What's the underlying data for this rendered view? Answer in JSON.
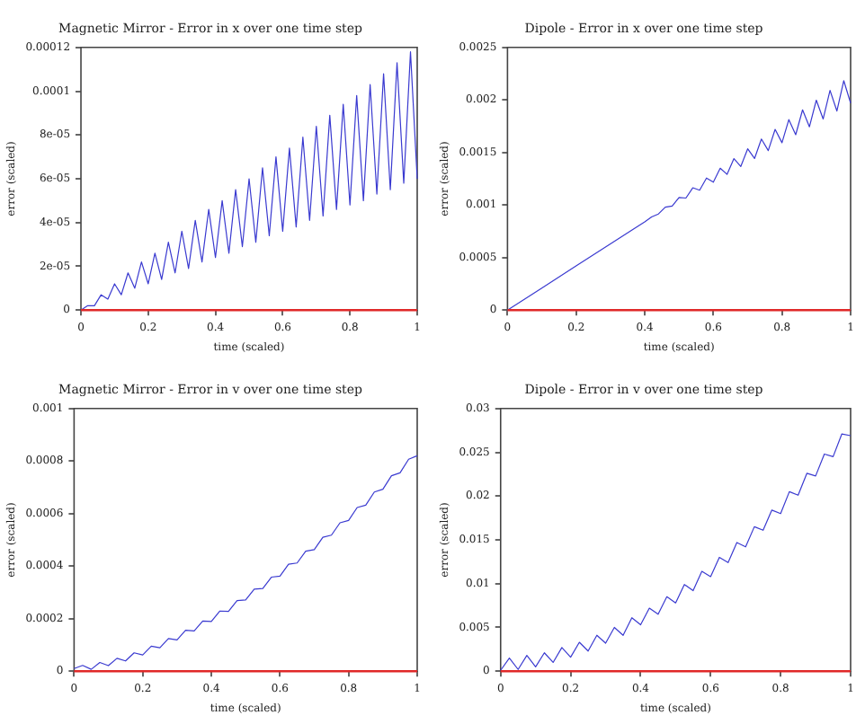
{
  "chart_data": [
    {
      "type": "line",
      "title": "Magnetic Mirror - Error in x over one time step",
      "xlabel": "time (scaled)",
      "ylabel": "error (scaled)",
      "marker": "none",
      "x": [
        0,
        0.02,
        0.04,
        0.06,
        0.08,
        0.1,
        0.12,
        0.14,
        0.16,
        0.18,
        0.2,
        0.22,
        0.24,
        0.26,
        0.28,
        0.3,
        0.32,
        0.34,
        0.36,
        0.38,
        0.4,
        0.42,
        0.44,
        0.46,
        0.48,
        0.5,
        0.52,
        0.54,
        0.56,
        0.58,
        0.6,
        0.62,
        0.64,
        0.66,
        0.68,
        0.7,
        0.72,
        0.74,
        0.76,
        0.78,
        0.8,
        0.82,
        0.84,
        0.86,
        0.88,
        0.9,
        0.92,
        0.94,
        0.96,
        0.98,
        1
      ],
      "xlim": [
        0,
        1
      ],
      "xticks": [
        0,
        0.2,
        0.4,
        0.6,
        0.8,
        1
      ],
      "ylim": [
        0,
        0.00012
      ],
      "yticks": [
        0,
        {
          "value": 2e-05,
          "label": "2e-05"
        },
        {
          "value": 4e-05,
          "label": "4e-05"
        },
        {
          "value": 6e-05,
          "label": "6e-05"
        },
        {
          "value": 8e-05,
          "label": "8e-05"
        },
        0.0001,
        0.00012
      ],
      "series": [
        {
          "color": "#3a3ad0",
          "values": [
            0,
            2e-06,
            2e-06,
            7e-06,
            5e-06,
            1.2e-05,
            7e-06,
            1.7e-05,
            1e-05,
            2.2e-05,
            1.2e-05,
            2.6e-05,
            1.4e-05,
            3.1e-05,
            1.7e-05,
            3.6e-05,
            1.9e-05,
            4.1e-05,
            2.2e-05,
            4.6e-05,
            2.4e-05,
            5e-05,
            2.6e-05,
            5.5e-05,
            2.9e-05,
            6e-05,
            3.1e-05,
            6.5e-05,
            3.4e-05,
            7e-05,
            3.6e-05,
            7.4e-05,
            3.8e-05,
            7.9e-05,
            4.1e-05,
            8.4e-05,
            4.3e-05,
            8.9e-05,
            4.6e-05,
            9.4e-05,
            4.8e-05,
            9.8e-05,
            5e-05,
            0.000103,
            5.3e-05,
            0.000108,
            5.5e-05,
            0.000113,
            5.8e-05,
            0.000118,
            6e-05
          ]
        },
        {
          "color": "#e02828",
          "values": [
            0,
            0,
            0,
            0,
            0,
            0,
            0,
            0,
            0,
            0,
            0,
            0,
            0,
            0,
            0,
            0,
            0,
            0,
            0,
            0,
            0,
            0,
            0,
            0,
            0,
            0,
            0,
            0,
            0,
            0,
            0,
            0,
            0,
            0,
            0,
            0,
            0,
            0,
            0,
            0,
            0,
            0,
            0,
            0,
            0,
            0,
            0,
            0,
            0,
            0,
            0
          ]
        }
      ]
    },
    {
      "type": "line",
      "title": "Dipole - Error in x over one time step",
      "xlabel": "time (scaled)",
      "ylabel": "error (scaled)",
      "marker": "none",
      "x": [
        0,
        0.1,
        0.2,
        0.3,
        0.4,
        0.42,
        0.44,
        0.46,
        0.48,
        0.5,
        0.52,
        0.54,
        0.56,
        0.58,
        0.6,
        0.62,
        0.64,
        0.66,
        0.68,
        0.7,
        0.72,
        0.74,
        0.76,
        0.78,
        0.8,
        0.82,
        0.84,
        0.86,
        0.88,
        0.9,
        0.92,
        0.94,
        0.96,
        0.98,
        1
      ],
      "xlim": [
        0,
        1
      ],
      "xticks": [
        0,
        0.2,
        0.4,
        0.6,
        0.8,
        1
      ],
      "ylim": [
        0,
        0.0025
      ],
      "yticks": [
        0,
        0.0005,
        0.001,
        0.0015,
        0.002,
        0.0025
      ],
      "series": [
        {
          "color": "#3a3ad0",
          "values": [
            0,
            0.00021,
            0.00042,
            0.00063,
            0.00084,
            0.000886,
            0.000915,
            0.000979,
            0.000991,
            0.001072,
            0.001066,
            0.001164,
            0.001141,
            0.001257,
            0.001217,
            0.00135,
            0.001292,
            0.001442,
            0.001367,
            0.001535,
            0.001443,
            0.001628,
            0.001518,
            0.00172,
            0.001593,
            0.001813,
            0.001669,
            0.001906,
            0.001744,
            0.001998,
            0.001819,
            0.002091,
            0.001895,
            0.002184,
            0.00197
          ]
        },
        {
          "color": "#e02828",
          "values": [
            0,
            0,
            0,
            0,
            0,
            0,
            0,
            0,
            0,
            0,
            0,
            0,
            0,
            0,
            0,
            0,
            0,
            0,
            0,
            0,
            0,
            0,
            0,
            0,
            0,
            0,
            0,
            0,
            0,
            0,
            0,
            0,
            0,
            0,
            0
          ]
        }
      ]
    },
    {
      "type": "line",
      "title": "Magnetic Mirror - Error in v over one time step",
      "xlabel": "time (scaled)",
      "ylabel": "error (scaled)",
      "marker": "none",
      "x": [
        0,
        0.025,
        0.05,
        0.075,
        0.1,
        0.125,
        0.15,
        0.175,
        0.2,
        0.225,
        0.25,
        0.275,
        0.3,
        0.325,
        0.35,
        0.375,
        0.4,
        0.425,
        0.45,
        0.475,
        0.5,
        0.525,
        0.55,
        0.575,
        0.6,
        0.625,
        0.65,
        0.675,
        0.7,
        0.725,
        0.75,
        0.775,
        0.8,
        0.825,
        0.85,
        0.875,
        0.9,
        0.925,
        0.95,
        0.975,
        1
      ],
      "xlim": [
        0,
        1
      ],
      "xticks": [
        0,
        0.2,
        0.4,
        0.6,
        0.8,
        1
      ],
      "ylim": [
        0,
        0.001
      ],
      "yticks": [
        0,
        0.0002,
        0.0004,
        0.0006,
        0.0008,
        0.001
      ],
      "series": [
        {
          "color": "#3a3ad0",
          "values": [
            1e-05,
            2.2e-05,
            7e-06,
            3.3e-05,
            2.1e-05,
            4.9e-05,
            3.9e-05,
            7e-05,
            6.2e-05,
            9.5e-05,
            8.9e-05,
            0.000124,
            0.000119,
            0.000156,
            0.000153,
            0.000191,
            0.000189,
            0.000229,
            0.000228,
            0.000269,
            0.000271,
            0.000312,
            0.000315,
            0.000358,
            0.000362,
            0.000407,
            0.000412,
            0.000457,
            0.000463,
            0.00051,
            0.000518,
            0.000565,
            0.000574,
            0.000623,
            0.000632,
            0.000682,
            0.000693,
            0.000744,
            0.000755,
            0.000807,
            0.00082
          ]
        },
        {
          "color": "#e02828",
          "values": [
            0,
            0,
            0,
            0,
            0,
            0,
            0,
            0,
            0,
            0,
            0,
            0,
            0,
            0,
            0,
            0,
            0,
            0,
            0,
            0,
            0,
            0,
            0,
            0,
            0,
            0,
            0,
            0,
            0,
            0,
            0,
            0,
            0,
            0,
            0,
            0,
            0,
            0,
            0,
            0,
            0
          ]
        }
      ]
    },
    {
      "type": "line",
      "title": "Dipole - Error in v over one time step",
      "xlabel": "time (scaled)",
      "ylabel": "error (scaled)",
      "marker": "none",
      "x": [
        0,
        0.025,
        0.05,
        0.075,
        0.1,
        0.125,
        0.15,
        0.175,
        0.2,
        0.225,
        0.25,
        0.275,
        0.3,
        0.325,
        0.35,
        0.375,
        0.4,
        0.425,
        0.45,
        0.475,
        0.5,
        0.525,
        0.55,
        0.575,
        0.6,
        0.625,
        0.65,
        0.675,
        0.7,
        0.725,
        0.75,
        0.775,
        0.8,
        0.825,
        0.85,
        0.875,
        0.9,
        0.925,
        0.95,
        0.975,
        1
      ],
      "xlim": [
        0,
        1
      ],
      "xticks": [
        0,
        0.2,
        0.4,
        0.6,
        0.8,
        1
      ],
      "ylim": [
        0,
        0.03
      ],
      "yticks": [
        0,
        0.005,
        0.01,
        0.015,
        0.02,
        0.025,
        0.03
      ],
      "series": [
        {
          "color": "#3a3ad0",
          "values": [
            0.0001,
            0.0015,
            0.0002,
            0.0018,
            0.0005,
            0.0021,
            0.001,
            0.0027,
            0.0016,
            0.0033,
            0.0023,
            0.0041,
            0.0032,
            0.005,
            0.0041,
            0.0061,
            0.0053,
            0.0072,
            0.0065,
            0.0085,
            0.0078,
            0.0099,
            0.0092,
            0.0114,
            0.0108,
            0.013,
            0.0124,
            0.0147,
            0.0142,
            0.0165,
            0.0161,
            0.0184,
            0.018,
            0.0205,
            0.0201,
            0.0226,
            0.0223,
            0.0248,
            0.0245,
            0.0271,
            0.0269
          ]
        },
        {
          "color": "#e02828",
          "values": [
            0,
            0,
            0,
            0,
            0,
            0,
            0,
            0,
            0,
            0,
            0,
            0,
            0,
            0,
            0,
            0,
            0,
            0,
            0,
            0,
            0,
            0,
            0,
            0,
            0,
            0,
            0,
            0,
            0,
            0,
            0,
            0,
            0,
            0,
            0,
            0,
            0,
            0,
            0,
            0,
            0
          ]
        }
      ]
    }
  ]
}
